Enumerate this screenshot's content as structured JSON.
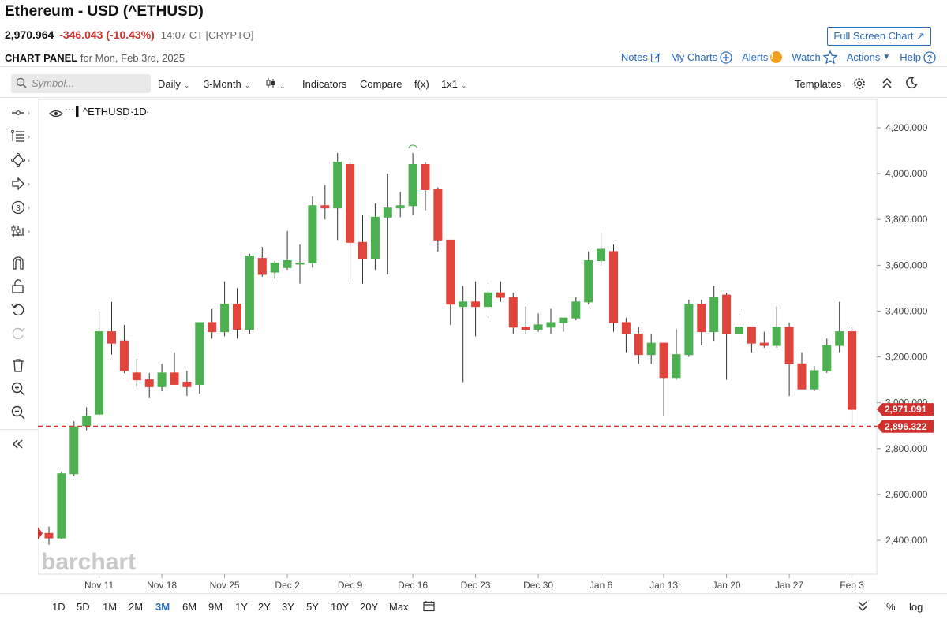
{
  "header": {
    "title": "Ethereum - USD (^ETHUSD)",
    "last": "2,970.964",
    "change": "-346.043 (-10.43%)",
    "time": "14:07 CT [CRYPTO]",
    "fullscreen": "Full Screen Chart",
    "panel_label": "CHART PANEL",
    "panel_date": "for Mon, Feb 3rd, 2025"
  },
  "actions": {
    "notes": "Notes",
    "my_charts": "My Charts",
    "alerts": "Alerts",
    "alerts_badge": "!",
    "watch": "Watch",
    "actions": "Actions",
    "help": "Help"
  },
  "toolbar": {
    "symbol_placeholder": "Symbol...",
    "interval": "Daily",
    "range": "3-Month",
    "indicators": "Indicators",
    "compare": "Compare",
    "fx": "f(x)",
    "layout": "1x1",
    "templates": "Templates"
  },
  "bottom": {
    "ranges": [
      "1D",
      "5D",
      "1M",
      "2M",
      "3M",
      "6M",
      "9M",
      "1Y",
      "2Y",
      "3Y",
      "5Y",
      "10Y",
      "20Y",
      "Max"
    ],
    "active": "3M",
    "pct": "%",
    "log": "log"
  },
  "chart_data": {
    "type": "candlestick",
    "symbol_label": "^ETHUSD",
    "interval_label": "1D",
    "watermark": "barchart",
    "colors": {
      "up": "#4caf50",
      "down": "#e0443b",
      "price_line": "#d0312d"
    },
    "y_ticks": [
      "4,200.000",
      "4,000.000",
      "3,800.000",
      "3,600.000",
      "3,400.000",
      "3,200.000",
      "3,000.000",
      "2,800.000",
      "2,600.000",
      "2,400.000"
    ],
    "y_tick_values": [
      4200,
      4000,
      3800,
      3600,
      3400,
      3200,
      3000,
      2800,
      2600,
      2400
    ],
    "ylim": [
      2260,
      4330
    ],
    "x_labels": [
      "Nov 11",
      "Nov 18",
      "Nov 25",
      "Dec 2",
      "Dec 9",
      "Dec 16",
      "Dec 23",
      "Dec 30",
      "Jan 6",
      "Jan 13",
      "Jan 20",
      "Jan 27",
      "Feb 3"
    ],
    "x_label_candle_index": [
      4,
      9,
      14,
      19,
      24,
      29,
      34,
      39,
      44,
      49,
      54,
      59,
      64
    ],
    "last_price_label": "2,971.091",
    "price_line_label": "2,896.322",
    "price_line_value": 2896.322,
    "candles": [
      [
        2430,
        2460,
        2380,
        2410
      ],
      [
        2410,
        2700,
        2405,
        2690
      ],
      [
        2690,
        2920,
        2680,
        2895
      ],
      [
        2900,
        2980,
        2880,
        2940
      ],
      [
        2950,
        3400,
        2940,
        3310
      ],
      [
        3310,
        3440,
        3210,
        3260
      ],
      [
        3270,
        3340,
        3130,
        3140
      ],
      [
        3130,
        3190,
        3070,
        3100
      ],
      [
        3100,
        3130,
        3020,
        3070
      ],
      [
        3070,
        3170,
        3050,
        3130
      ],
      [
        3130,
        3220,
        3080,
        3080
      ],
      [
        3090,
        3140,
        3030,
        3070
      ],
      [
        3080,
        3330,
        3040,
        3350
      ],
      [
        3350,
        3410,
        3280,
        3310
      ],
      [
        3310,
        3530,
        3290,
        3430
      ],
      [
        3430,
        3500,
        3280,
        3320
      ],
      [
        3320,
        3650,
        3300,
        3640
      ],
      [
        3630,
        3680,
        3550,
        3560
      ],
      [
        3570,
        3620,
        3540,
        3610
      ],
      [
        3590,
        3750,
        3580,
        3620
      ],
      [
        3610,
        3690,
        3520,
        3610
      ],
      [
        3610,
        3900,
        3590,
        3860
      ],
      [
        3860,
        3950,
        3800,
        3850
      ],
      [
        3850,
        4090,
        3710,
        4050
      ],
      [
        4040,
        4050,
        3540,
        3700
      ],
      [
        3700,
        3820,
        3520,
        3630
      ],
      [
        3630,
        3870,
        3580,
        3810
      ],
      [
        3810,
        4000,
        3560,
        3850
      ],
      [
        3850,
        3920,
        3810,
        3860
      ],
      [
        3860,
        4090,
        3820,
        4040
      ],
      [
        4040,
        4050,
        3840,
        3930
      ],
      [
        3930,
        3940,
        3660,
        3710
      ],
      [
        3710,
        3690,
        3340,
        3430
      ],
      [
        3420,
        3510,
        3090,
        3440
      ],
      [
        3440,
        3530,
        3290,
        3420
      ],
      [
        3420,
        3520,
        3370,
        3480
      ],
      [
        3480,
        3530,
        3440,
        3460
      ],
      [
        3460,
        3480,
        3300,
        3330
      ],
      [
        3330,
        3420,
        3300,
        3320
      ],
      [
        3320,
        3390,
        3310,
        3340
      ],
      [
        3330,
        3410,
        3300,
        3350
      ],
      [
        3350,
        3370,
        3310,
        3370
      ],
      [
        3370,
        3460,
        3360,
        3440
      ],
      [
        3440,
        3660,
        3430,
        3620
      ],
      [
        3620,
        3740,
        3600,
        3670
      ],
      [
        3660,
        3690,
        3310,
        3350
      ],
      [
        3350,
        3370,
        3220,
        3300
      ],
      [
        3300,
        3330,
        3170,
        3210
      ],
      [
        3210,
        3300,
        3170,
        3260
      ],
      [
        3260,
        3260,
        2940,
        3110
      ],
      [
        3110,
        3320,
        3100,
        3210
      ],
      [
        3210,
        3450,
        3200,
        3430
      ],
      [
        3430,
        3450,
        3250,
        3310
      ],
      [
        3310,
        3510,
        3270,
        3460
      ],
      [
        3470,
        3480,
        3100,
        3300
      ],
      [
        3300,
        3390,
        3270,
        3330
      ],
      [
        3330,
        3330,
        3220,
        3260
      ],
      [
        3260,
        3310,
        3240,
        3250
      ],
      [
        3250,
        3420,
        3240,
        3330
      ],
      [
        3330,
        3350,
        3030,
        3170
      ],
      [
        3170,
        3220,
        3060,
        3060
      ],
      [
        3060,
        3160,
        3050,
        3140
      ],
      [
        3140,
        3280,
        3130,
        3250
      ],
      [
        3250,
        3440,
        3220,
        3310
      ],
      [
        3310,
        3330,
        2900,
        2971
      ]
    ]
  }
}
